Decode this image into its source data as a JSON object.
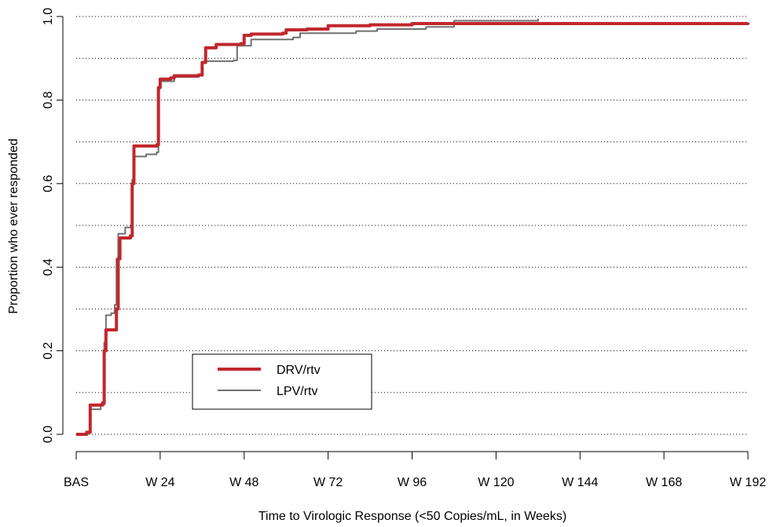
{
  "chart_data": {
    "type": "line",
    "subtype": "cumulative-step",
    "title": "",
    "xlabel": "Time to Virologic Response (<50 Copies/mL, in Weeks)",
    "ylabel": "Proportion who ever responded",
    "xlim": [
      0,
      192
    ],
    "ylim": [
      0,
      1
    ],
    "x_ticks": [
      {
        "value": 0,
        "label": "BAS"
      },
      {
        "value": 24,
        "label": "W 24"
      },
      {
        "value": 48,
        "label": "W 48"
      },
      {
        "value": 72,
        "label": "W 72"
      },
      {
        "value": 96,
        "label": "W 96"
      },
      {
        "value": 120,
        "label": "W 120"
      },
      {
        "value": 144,
        "label": "W 144"
      },
      {
        "value": 168,
        "label": "W 168"
      },
      {
        "value": 192,
        "label": "W 192"
      }
    ],
    "y_ticks": [
      {
        "value": 0,
        "label": "0.0"
      },
      {
        "value": 0.2,
        "label": "0.2"
      },
      {
        "value": 0.4,
        "label": "0.4"
      },
      {
        "value": 0.6,
        "label": "0.6"
      },
      {
        "value": 0.8,
        "label": "0.8"
      },
      {
        "value": 1.0,
        "label": "1.0"
      }
    ],
    "grid": {
      "horizontal": true,
      "style": "dotted",
      "values": [
        0,
        0.1,
        0.2,
        0.3,
        0.4,
        0.5,
        0.6,
        0.7,
        0.8,
        0.9,
        1.0
      ]
    },
    "legend": {
      "position": "lower-left-inside"
    },
    "series": [
      {
        "name": "DRV/rtv",
        "color": "#c0272d",
        "line_weight": "thick",
        "points": [
          [
            0,
            0.0
          ],
          [
            3,
            0.0
          ],
          [
            3,
            0.005
          ],
          [
            4,
            0.005
          ],
          [
            4,
            0.07
          ],
          [
            7.5,
            0.075
          ],
          [
            8,
            0.08
          ],
          [
            8,
            0.2
          ],
          [
            8.5,
            0.25
          ],
          [
            11,
            0.25
          ],
          [
            11.5,
            0.3
          ],
          [
            12,
            0.42
          ],
          [
            12.5,
            0.47
          ],
          [
            15.5,
            0.475
          ],
          [
            16,
            0.6
          ],
          [
            16.5,
            0.69
          ],
          [
            23,
            0.693
          ],
          [
            23.5,
            0.83
          ],
          [
            24,
            0.85
          ],
          [
            27,
            0.853
          ],
          [
            28,
            0.858
          ],
          [
            35,
            0.86
          ],
          [
            36,
            0.89
          ],
          [
            37,
            0.925
          ],
          [
            40,
            0.933
          ],
          [
            47,
            0.935
          ],
          [
            48,
            0.955
          ],
          [
            50,
            0.958
          ],
          [
            59,
            0.96
          ],
          [
            60,
            0.968
          ],
          [
            66,
            0.97
          ],
          [
            72,
            0.978
          ],
          [
            84,
            0.98
          ],
          [
            96,
            0.983
          ],
          [
            192,
            0.985
          ]
        ]
      },
      {
        "name": "LPV/rtv",
        "color": "#707070",
        "line_weight": "thin",
        "points": [
          [
            0,
            0.0
          ],
          [
            3,
            0.005
          ],
          [
            4,
            0.01
          ],
          [
            4,
            0.06
          ],
          [
            7,
            0.07
          ],
          [
            8,
            0.08
          ],
          [
            8,
            0.22
          ],
          [
            8.5,
            0.285
          ],
          [
            10,
            0.29
          ],
          [
            11,
            0.31
          ],
          [
            11.5,
            0.42
          ],
          [
            12,
            0.48
          ],
          [
            14,
            0.495
          ],
          [
            15.5,
            0.5
          ],
          [
            16,
            0.61
          ],
          [
            16.5,
            0.665
          ],
          [
            20,
            0.67
          ],
          [
            23,
            0.675
          ],
          [
            23.5,
            0.83
          ],
          [
            24,
            0.845
          ],
          [
            28,
            0.855
          ],
          [
            35,
            0.858
          ],
          [
            36,
            0.89
          ],
          [
            37,
            0.893
          ],
          [
            45,
            0.895
          ],
          [
            46,
            0.93
          ],
          [
            50,
            0.945
          ],
          [
            62,
            0.95
          ],
          [
            64,
            0.96
          ],
          [
            80,
            0.965
          ],
          [
            86,
            0.97
          ],
          [
            100,
            0.975
          ],
          [
            108,
            0.99
          ],
          [
            132,
            0.995
          ]
        ]
      }
    ]
  }
}
